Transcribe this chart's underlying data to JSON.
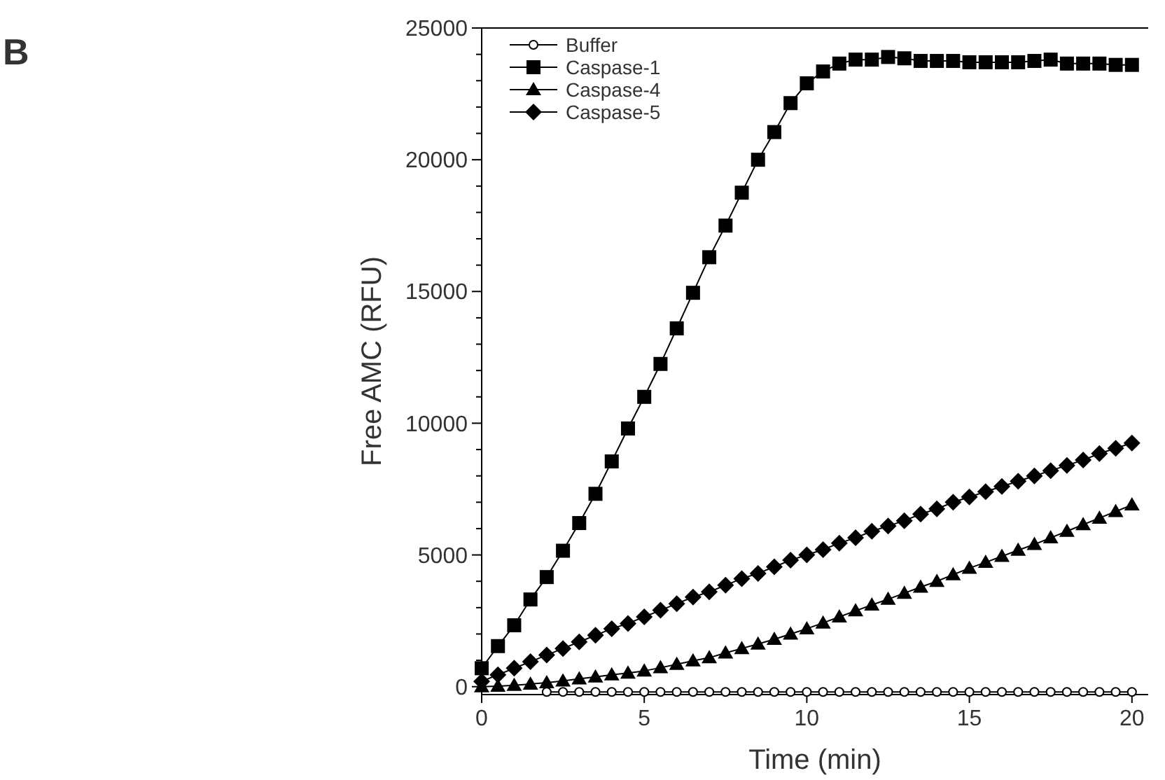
{
  "chart_data": {
    "type": "line",
    "xlabel": "Time (min)",
    "ylabel": "Free AMC (RFU)",
    "annotations": [
      "B"
    ],
    "x": [
      0,
      0.5,
      1,
      1.5,
      2,
      2.5,
      3,
      3.5,
      4,
      4.5,
      5,
      5.5,
      6,
      6.5,
      7,
      7.5,
      8,
      8.5,
      9,
      9.5,
      10,
      10.5,
      11,
      11.5,
      12,
      12.5,
      13,
      13.5,
      14,
      14.5,
      15,
      15.5,
      16,
      16.5,
      17,
      17.5,
      18,
      18.5,
      19,
      19.5,
      20
    ],
    "xlim": [
      0,
      20.5
    ],
    "xticks": [
      0,
      5,
      10,
      15,
      20
    ],
    "ylim": [
      -300,
      25000
    ],
    "yticks": [
      0,
      {
        "value": 1000,
        "label": null
      },
      {
        "value": 2000,
        "label": null
      },
      {
        "value": 3000,
        "label": null
      },
      {
        "value": 4000,
        "label": null
      },
      5000,
      {
        "value": 6000,
        "label": null
      },
      {
        "value": 7000,
        "label": null
      },
      {
        "value": 8000,
        "label": null
      },
      {
        "value": 9000,
        "label": null
      },
      10000,
      {
        "value": 11000,
        "label": null
      },
      {
        "value": 12000,
        "label": null
      },
      {
        "value": 13000,
        "label": null
      },
      {
        "value": 14000,
        "label": null
      },
      15000,
      {
        "value": 16000,
        "label": null
      },
      {
        "value": 17000,
        "label": null
      },
      {
        "value": 18000,
        "label": null
      },
      {
        "value": 19000,
        "label": null
      },
      20000,
      {
        "value": 21000,
        "label": null
      },
      {
        "value": 22000,
        "label": null
      },
      {
        "value": 23000,
        "label": null
      },
      {
        "value": 24000,
        "label": null
      },
      25000
    ],
    "grid": false,
    "legend": "top left",
    "line_style": "solid",
    "series": [
      {
        "name": "Buffer",
        "color": "#000000",
        "marker": "circle",
        "values": [
          null,
          null,
          null,
          null,
          -200,
          -200,
          -200,
          -200,
          -200,
          -200,
          -200,
          -200,
          -200,
          -200,
          -200,
          -200,
          -200,
          -200,
          -200,
          -200,
          -200,
          -200,
          -200,
          -200,
          -200,
          -200,
          -200,
          -200,
          -200,
          -200,
          -200,
          -200,
          -200,
          -200,
          -200,
          -200,
          -200,
          -200,
          -200,
          -200,
          -200
        ]
      },
      {
        "name": "Caspase-1",
        "color": "#000000",
        "marker": "square",
        "values": [
          700,
          1540,
          2330,
          3310,
          4160,
          5160,
          6210,
          7320,
          8550,
          9800,
          11000,
          12250,
          13600,
          14950,
          16300,
          17500,
          18750,
          20000,
          21050,
          22150,
          22900,
          23350,
          23650,
          23800,
          23800,
          23900,
          23850,
          23750,
          23750,
          23750,
          23700,
          23700,
          23700,
          23700,
          23750,
          23800,
          23650,
          23650,
          23650,
          23600,
          23600
        ]
      },
      {
        "name": "Caspase-4",
        "color": "#000000",
        "marker": "triangle",
        "values": [
          0,
          20,
          50,
          100,
          150,
          220,
          300,
          370,
          450,
          520,
          600,
          720,
          850,
          980,
          1100,
          1280,
          1450,
          1620,
          1800,
          2000,
          2200,
          2420,
          2650,
          2880,
          3100,
          3320,
          3550,
          3780,
          4000,
          4250,
          4500,
          4720,
          4950,
          5180,
          5400,
          5650,
          5900,
          6150,
          6400,
          6650,
          6900
        ]
      },
      {
        "name": "Caspase-5",
        "color": "#000000",
        "marker": "diamond",
        "values": [
          200,
          450,
          700,
          950,
          1200,
          1450,
          1700,
          1950,
          2200,
          2400,
          2650,
          2900,
          3150,
          3400,
          3600,
          3850,
          4100,
          4300,
          4550,
          4800,
          5000,
          5200,
          5450,
          5650,
          5900,
          6100,
          6300,
          6550,
          6750,
          7000,
          7200,
          7400,
          7600,
          7800,
          8000,
          8200,
          8400,
          8600,
          8850,
          9050,
          9250
        ]
      }
    ]
  }
}
